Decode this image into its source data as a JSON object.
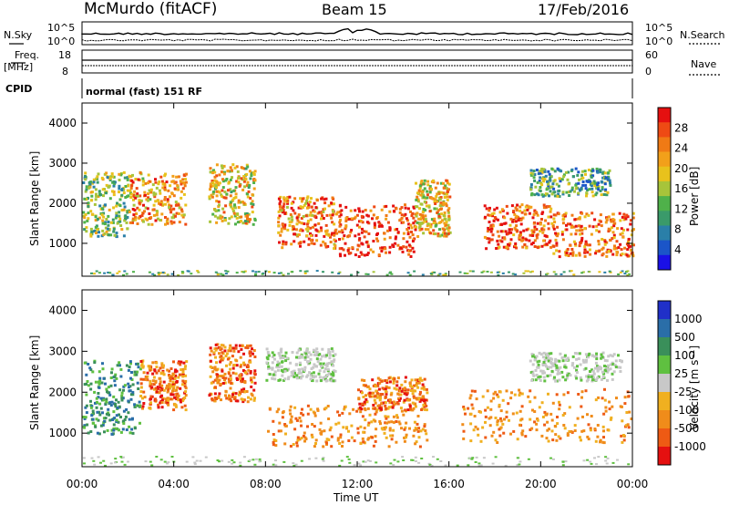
{
  "header": {
    "station": "McMurdo (fitACF)",
    "beam": "Beam 15",
    "date": "17/Feb/2016"
  },
  "panels": {
    "noise": {
      "left_label": "N.Sky",
      "left_ticks": [
        "10^5",
        "10^0"
      ],
      "right_ticks": [
        "10^5",
        "10^0"
      ],
      "right_label": "N.Search"
    },
    "freq": {
      "left_label_1": "Freq.",
      "left_label_2": "[MHz]",
      "left_ticks": [
        "18",
        "8"
      ],
      "right_ticks": [
        "60",
        "0"
      ],
      "right_label": "Nave"
    },
    "cpid": {
      "label": "CPID",
      "text": "normal (fast) 151 RF"
    }
  },
  "colors": {
    "power_scale": [
      "#1a10e6",
      "#1b55c8",
      "#2a7fa8",
      "#3a9a6a",
      "#4fb14a",
      "#a7c43a",
      "#e8c21c",
      "#f2a01a",
      "#f07a15",
      "#ee4a14",
      "#e51010"
    ],
    "velocity_scale": [
      "#2030c8",
      "#2a6ea8",
      "#3a8f5a",
      "#5fc040",
      "#c8c8c8",
      "#f0b020",
      "#f08c1a",
      "#ee5a14",
      "#e51010"
    ]
  },
  "chart_data": [
    {
      "type": "heatmap",
      "name": "power",
      "ylabel": "Slant Range [km]",
      "xlim_hours": [
        0,
        24
      ],
      "ylim": [
        180,
        4500
      ],
      "y_ticks": [
        "1000",
        "2000",
        "3000",
        "4000"
      ],
      "colorbar_label": "Power [dB]",
      "colorbar_ticks": [
        "4",
        "8",
        "12",
        "16",
        "20",
        "24",
        "28"
      ],
      "bands": [
        {
          "t0": 0.0,
          "t1": 2.0,
          "r0": 1200,
          "r1": 2800,
          "level": 0.45
        },
        {
          "t0": 2.0,
          "t1": 4.5,
          "r0": 1500,
          "r1": 2800,
          "level": 0.7
        },
        {
          "t0": 5.5,
          "t1": 7.5,
          "r0": 1500,
          "r1": 3000,
          "level": 0.6
        },
        {
          "t0": 8.5,
          "t1": 11.0,
          "r0": 900,
          "r1": 2200,
          "level": 0.75
        },
        {
          "t0": 11.0,
          "t1": 14.5,
          "r0": 700,
          "r1": 2000,
          "level": 0.9
        },
        {
          "t0": 14.5,
          "t1": 16.0,
          "r0": 1200,
          "r1": 2600,
          "level": 0.65
        },
        {
          "t0": 17.5,
          "t1": 20.5,
          "r0": 900,
          "r1": 2000,
          "level": 0.85
        },
        {
          "t0": 20.5,
          "t1": 24.0,
          "r0": 700,
          "r1": 1800,
          "level": 0.8
        },
        {
          "t0": 19.5,
          "t1": 23.0,
          "r0": 2200,
          "r1": 2900,
          "level": 0.35
        }
      ]
    },
    {
      "type": "heatmap",
      "name": "velocity",
      "ylabel": "Slant Range [km]",
      "xlabel": "Time UT",
      "xlim_hours": [
        0,
        24
      ],
      "ylim": [
        180,
        4500
      ],
      "x_ticks": [
        "00:00",
        "04:00",
        "08:00",
        "12:00",
        "16:00",
        "20:00",
        "00:00"
      ],
      "y_ticks": [
        "1000",
        "2000",
        "3000",
        "4000"
      ],
      "colorbar_label": "Velocity [m s⁻¹]",
      "colorbar_ticks": [
        "1000",
        "500",
        "100",
        "25",
        "-25",
        "-100",
        "-500",
        "-1000"
      ],
      "bands": [
        {
          "t0": 0.0,
          "t1": 2.5,
          "r0": 1000,
          "r1": 2800,
          "v": "green"
        },
        {
          "t0": 2.5,
          "t1": 4.5,
          "r0": 1600,
          "r1": 2800,
          "v": "red"
        },
        {
          "t0": 5.5,
          "t1": 7.5,
          "r0": 1800,
          "r1": 3200,
          "v": "red"
        },
        {
          "t0": 8.0,
          "t1": 11.0,
          "r0": 2300,
          "r1": 3100,
          "v": "gray"
        },
        {
          "t0": 8.0,
          "t1": 15.0,
          "r0": 700,
          "r1": 1700,
          "v": "orange"
        },
        {
          "t0": 12.0,
          "t1": 15.0,
          "r0": 1600,
          "r1": 2400,
          "v": "red"
        },
        {
          "t0": 16.5,
          "t1": 24.0,
          "r0": 800,
          "r1": 2100,
          "v": "orange"
        },
        {
          "t0": 19.5,
          "t1": 23.5,
          "r0": 2300,
          "r1": 3000,
          "v": "gray"
        }
      ]
    }
  ]
}
